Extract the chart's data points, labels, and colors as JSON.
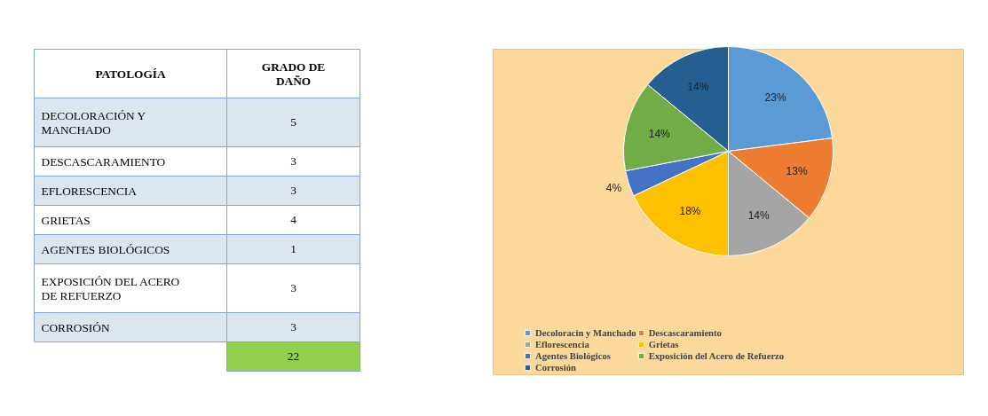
{
  "chart_data": [
    {
      "type": "other",
      "categories": [
        "DECOLORACIÓN Y\nMANCHADO",
        "DESCASCARAMIENTO",
        "EFLORESCENCIA",
        "GRIETAS",
        "AGENTES BIOLÓGICOS",
        "EXPOSICIÓN DEL ACERO\nDE REFUERZO",
        "CORROSIÓN"
      ],
      "values": [
        5,
        3,
        3,
        4,
        1,
        3,
        3
      ],
      "annotations": [
        "PATOLOGÍA",
        "GRADO DE\nDAÑO",
        "22"
      ],
      "data_labels": true
    },
    {
      "type": "pie",
      "categories": [
        "Decoloracin y Manchado",
        "Descascaramiento",
        "Eflorescencia",
        "Grietas",
        "Agentes Biológicos",
        "Exposición del Acero de Refuerzo",
        "Corrosión"
      ],
      "values": [
        23,
        13,
        14,
        18,
        4,
        14,
        14
      ],
      "colors": [
        "#5b9bd5",
        "#ed7d31",
        "#a5a5a5",
        "#ffc000",
        "#4472c4",
        "#70ad47",
        "#255e91"
      ],
      "value_labels": [
        "23%",
        "13%",
        "14%",
        "18%",
        "4%",
        "14%",
        "14%"
      ],
      "legend": "bottom"
    }
  ]
}
